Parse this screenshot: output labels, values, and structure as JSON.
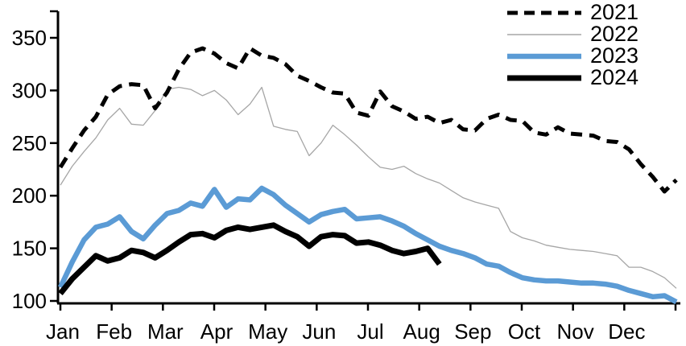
{
  "chart_data": {
    "type": "line",
    "title": "",
    "x_axis": {
      "tick_labels": [
        "Jan",
        "Feb",
        "Mar",
        "Apr",
        "May",
        "Jun",
        "Jul",
        "Aug",
        "Sep",
        "Oct",
        "Nov",
        "Dec"
      ],
      "points_per_year": 53,
      "unit": "week of year"
    },
    "y_axis": {
      "min": 100,
      "max": 375,
      "ticks": [
        100,
        150,
        200,
        250,
        300,
        350
      ],
      "gridlines": false
    },
    "legend_position": "top-right",
    "axis_color": "#000000",
    "background_color": "#ffffff",
    "series": [
      {
        "name": "2021",
        "color": "#000000",
        "style": "dashed",
        "width": 5,
        "values": [
          227,
          245,
          262,
          275,
          296,
          304,
          306,
          305,
          283,
          298,
          320,
          336,
          340,
          335,
          326,
          321,
          340,
          333,
          331,
          325,
          314,
          309,
          303,
          298,
          297,
          279,
          276,
          299,
          285,
          280,
          273,
          275,
          269,
          272,
          263,
          262,
          273,
          277,
          272,
          271,
          260,
          258,
          265,
          259,
          258,
          257,
          252,
          251,
          244,
          230,
          218,
          204,
          215
        ]
      },
      {
        "name": "2022",
        "color": "#a6a6a6",
        "style": "solid",
        "width": 1.3,
        "values": [
          210,
          228,
          242,
          255,
          272,
          283,
          268,
          267,
          281,
          301,
          303,
          301,
          295,
          300,
          291,
          277,
          287,
          303,
          266,
          263,
          261,
          238,
          250,
          267,
          258,
          248,
          237,
          227,
          225,
          228,
          221,
          216,
          212,
          205,
          198,
          194,
          191,
          188,
          166,
          160,
          157,
          153,
          151,
          149,
          148,
          147,
          145,
          143,
          132,
          132,
          128,
          122,
          112
        ]
      },
      {
        "name": "2023",
        "color": "#5b9bd5",
        "style": "solid",
        "width": 6.5,
        "values": [
          113,
          137,
          158,
          170,
          173,
          180,
          166,
          159,
          172,
          183,
          186,
          193,
          190,
          206,
          189,
          197,
          196,
          207,
          201,
          191,
          183,
          175,
          182,
          185,
          187,
          178,
          179,
          180,
          176,
          171,
          164,
          158,
          152,
          148,
          145,
          141,
          135,
          133,
          127,
          122,
          120,
          119,
          119,
          118,
          117,
          117,
          116,
          114,
          110,
          107,
          104,
          105,
          99
        ]
      },
      {
        "name": "2024",
        "color": "#000000",
        "style": "solid",
        "width": 7,
        "values": [
          107,
          121,
          132,
          143,
          138,
          141,
          148,
          146,
          141,
          148,
          156,
          163,
          164,
          160,
          167,
          170,
          168,
          170,
          172,
          166,
          161,
          152,
          161,
          163,
          162,
          155,
          156,
          153,
          148,
          145,
          147,
          150,
          135
        ]
      }
    ]
  }
}
